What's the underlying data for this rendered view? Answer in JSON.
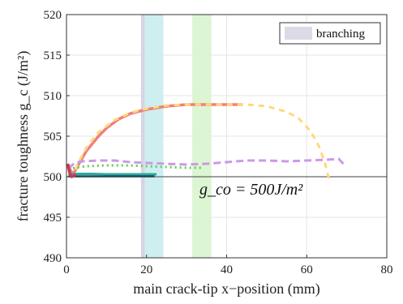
{
  "chart_data": {
    "type": "line",
    "xlabel": "main crack-tip x−position (mm)",
    "ylabel": "fracture toughness g_c (J/m²)",
    "xlim": [
      0,
      80
    ],
    "ylim": [
      490,
      520
    ],
    "xticks": [
      "0",
      "20",
      "40",
      "60",
      "80"
    ],
    "yticks": [
      "490",
      "495",
      "500",
      "505",
      "510",
      "515",
      "520"
    ],
    "grid": true,
    "legend": {
      "placement": "top-right",
      "entries": [
        {
          "label": "branching",
          "color": "#dadbe6"
        }
      ]
    },
    "annotation": {
      "text": "g_co = 500J/m²"
    },
    "reference_line": {
      "y": 500,
      "color": "#666666"
    },
    "bands": [
      {
        "x0": 18.6,
        "x1": 19.6,
        "color": "#d4d6e4"
      },
      {
        "x0": 19.6,
        "x1": 24.2,
        "color": "#cdeff0"
      },
      {
        "x0": 31.4,
        "x1": 36.2,
        "color": "#dcf6d4"
      }
    ],
    "series": [
      {
        "color": "#f07f7f",
        "dash": "solid",
        "width": 3.5,
        "x": [
          0.5,
          1.0,
          1.5,
          2.0,
          3.0,
          5.0,
          8.0,
          10.0,
          13.0,
          16.0,
          20.0,
          25.0,
          30.0,
          35.0,
          40.0,
          44.0
        ],
        "y": [
          501.5,
          500.8,
          500.4,
          500.6,
          501.5,
          503.2,
          505.0,
          506.0,
          507.1,
          507.8,
          508.3,
          508.7,
          508.9,
          508.9,
          508.9,
          508.9
        ]
      },
      {
        "color": "#ffd97a",
        "dash": "7 6",
        "width": 3,
        "x": [
          0.5,
          1.0,
          2.0,
          3.0,
          5.0,
          8.0,
          12.0,
          16.0,
          20.0,
          25.0,
          30.0,
          35.0,
          40.0,
          45.0,
          50.0,
          55.0,
          58.0,
          61.0,
          63.0,
          64.5,
          65.5
        ],
        "y": [
          500.3,
          500.1,
          500.6,
          501.8,
          503.6,
          505.5,
          507.0,
          507.9,
          508.4,
          508.8,
          508.9,
          508.9,
          508.9,
          508.9,
          508.7,
          508.0,
          507.2,
          505.6,
          503.8,
          501.8,
          499.8
        ]
      },
      {
        "color": "#cc99e6",
        "dash": "9 5",
        "width": 3,
        "x": [
          0.5,
          2.0,
          4.0,
          8.0,
          12.0,
          16.0,
          20.0,
          25.0,
          30.0,
          35.0,
          40.0,
          45.0,
          50.0,
          55.0,
          60.0,
          65.0,
          68.0,
          69.5
        ],
        "y": [
          501.0,
          501.7,
          501.9,
          502.0,
          502.0,
          501.8,
          501.7,
          501.6,
          501.5,
          501.6,
          501.8,
          502.0,
          502.0,
          501.9,
          502.0,
          502.1,
          502.2,
          501.4
        ]
      },
      {
        "color": "#66cc55",
        "dash": "2 4",
        "width": 3,
        "x": [
          0.5,
          2.0,
          5.0,
          10.0,
          15.0,
          20.0,
          25.0,
          30.0,
          34.0
        ],
        "y": [
          500.8,
          501.1,
          501.3,
          501.4,
          501.4,
          501.3,
          501.2,
          501.1,
          501.1
        ]
      },
      {
        "color": "#2aaaa0",
        "dash": "solid",
        "width": 3,
        "x": [
          0.5,
          1.5,
          3.0,
          6.0,
          10.0,
          15.0,
          20.0,
          22.5
        ],
        "y": [
          500.3,
          500.3,
          500.35,
          500.35,
          500.3,
          500.3,
          500.3,
          500.3
        ]
      },
      {
        "color": "#1c4a55",
        "dash": "solid",
        "width": 2.5,
        "x": [
          0.5,
          2.0,
          5.0,
          10.0,
          15.0,
          20.0,
          22.0
        ],
        "y": [
          500.05,
          500.05,
          500.05,
          500.05,
          500.05,
          500.05,
          500.05
        ]
      },
      {
        "color": "#c43a55",
        "dash": "solid",
        "width": 3.5,
        "x": [
          0.3,
          0.6,
          0.9,
          1.3,
          1.8,
          2.3
        ],
        "y": [
          501.6,
          500.9,
          500.3,
          500.0,
          500.1,
          500.3
        ]
      }
    ]
  }
}
